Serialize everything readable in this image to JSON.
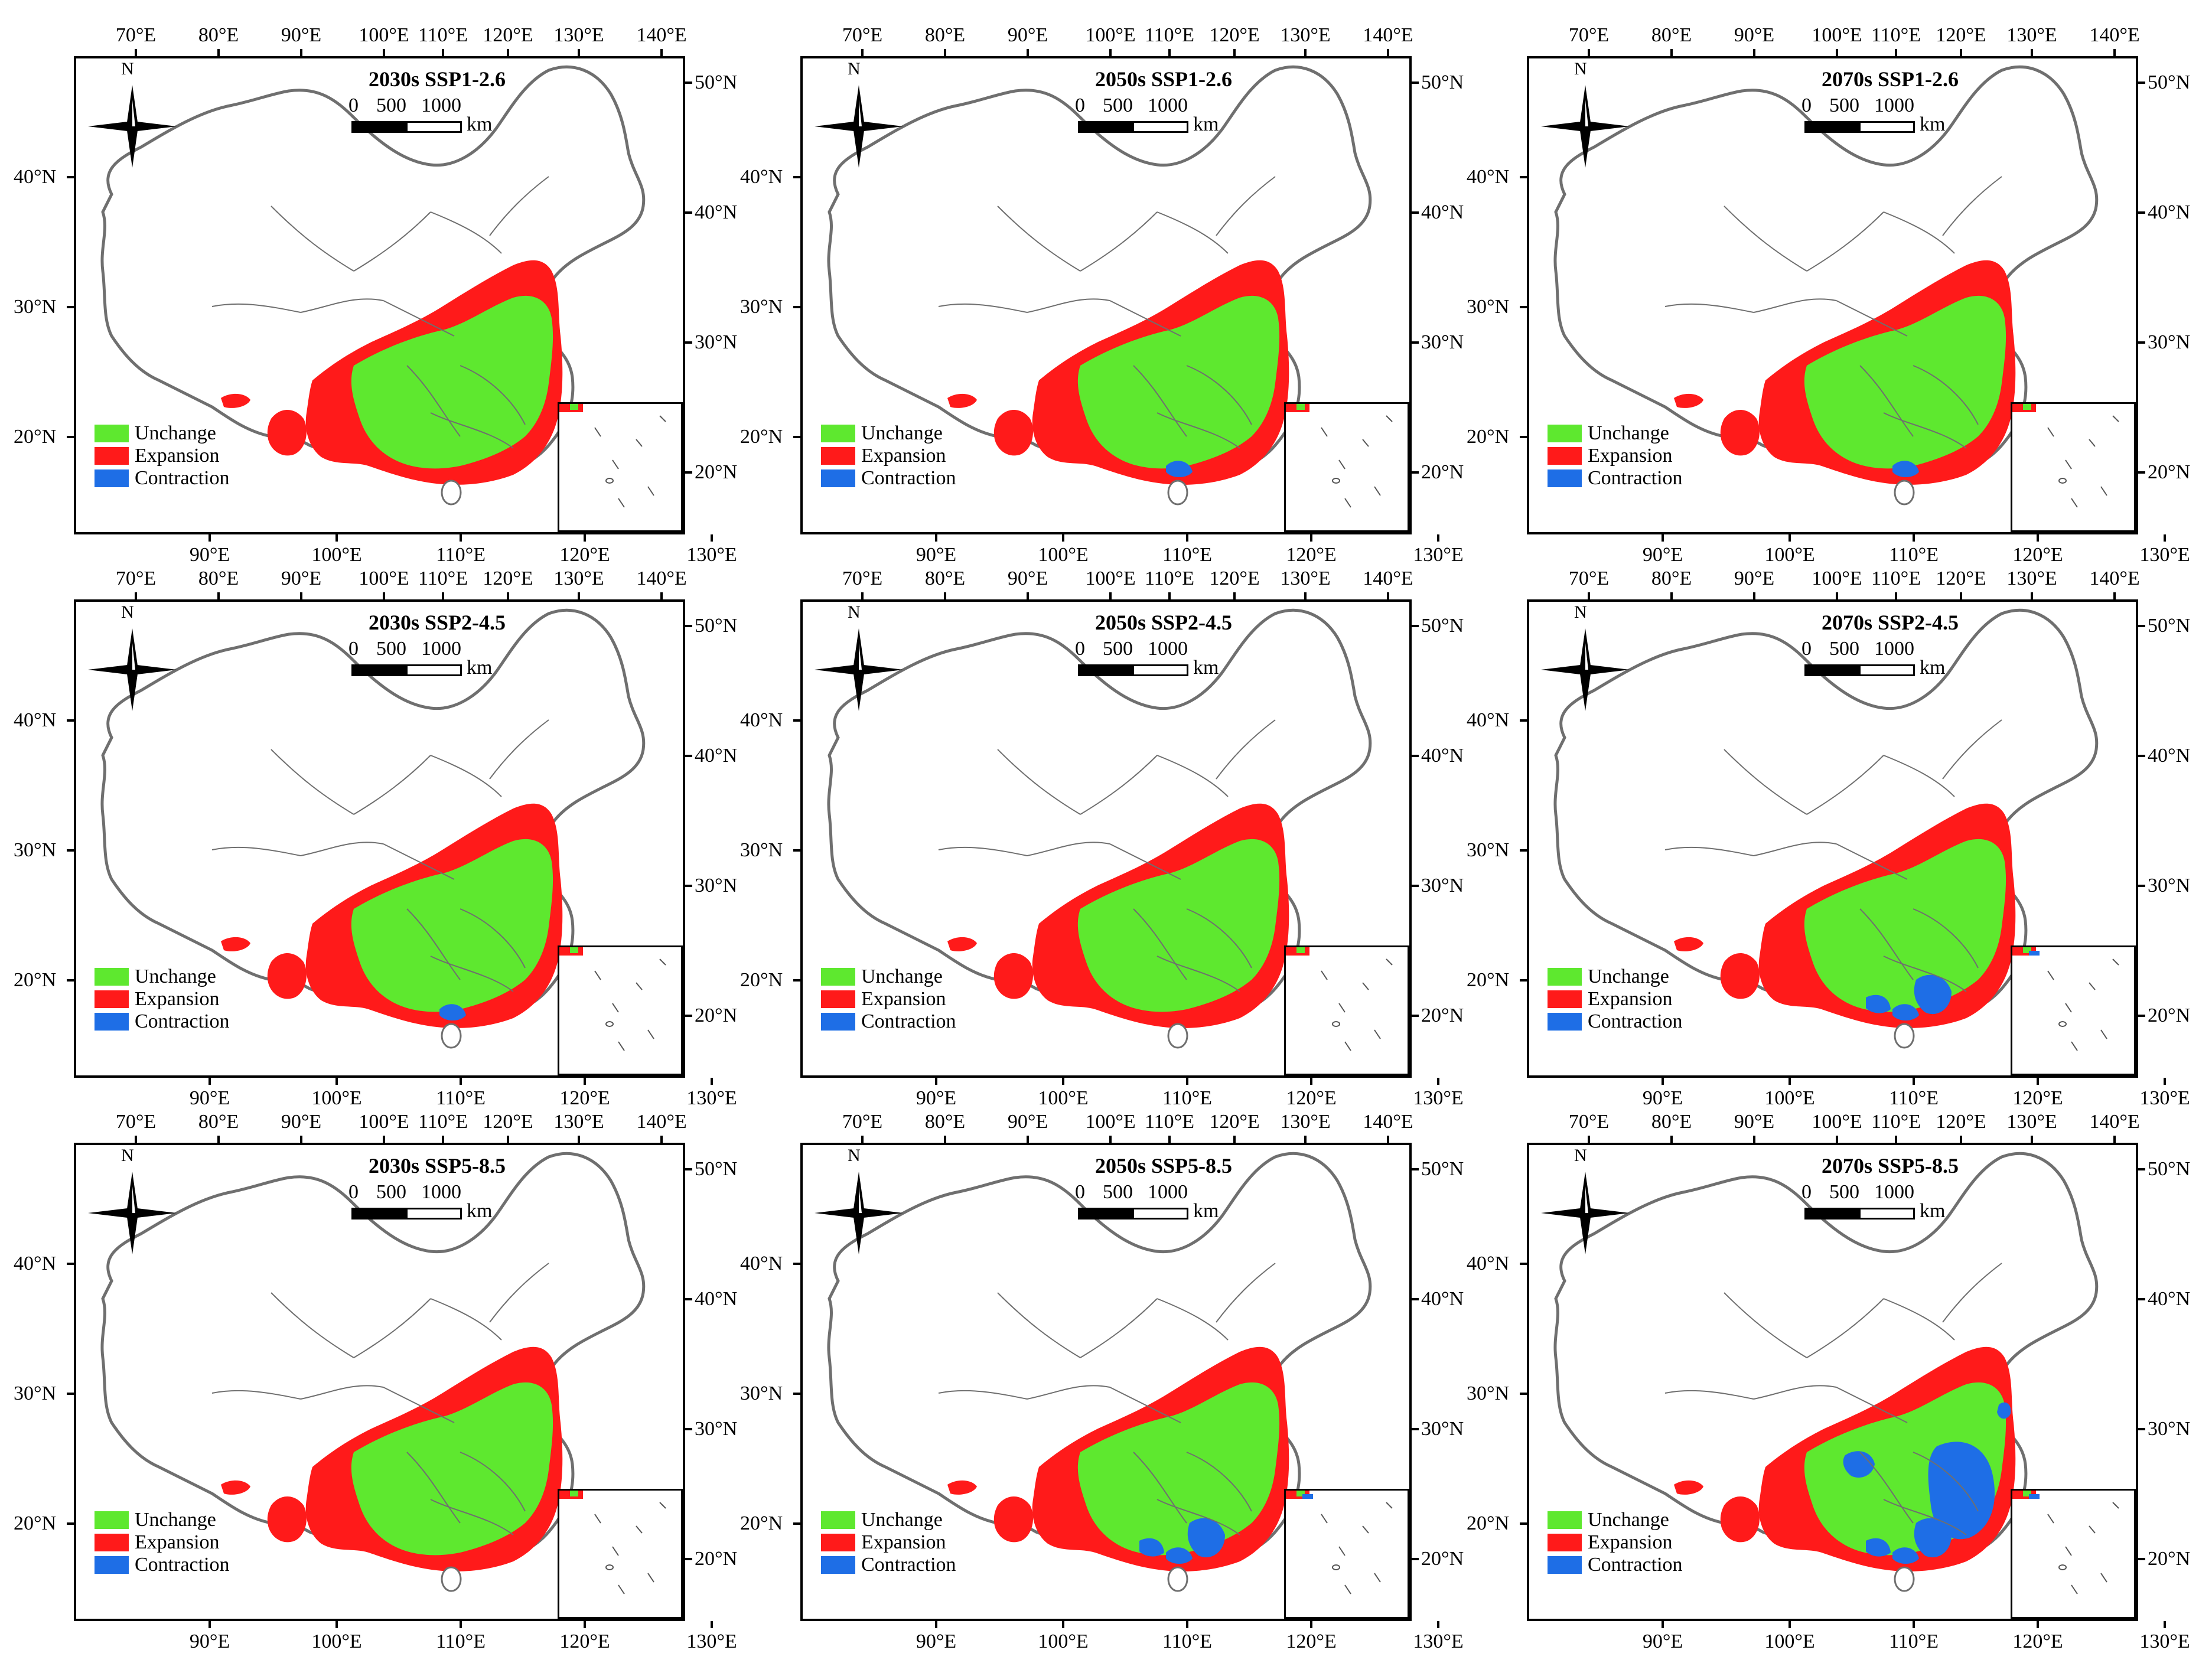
{
  "figure": {
    "colors": {
      "unchanged": "#5ee82f",
      "expansion": "#ff1a1a",
      "contraction": "#1e6ee6",
      "boundary": "#6f6f6f"
    },
    "top_axis_labels": [
      "70°E",
      "80°E",
      "90°E",
      "100°E",
      "110°E",
      "120°E",
      "130°E",
      "140°E"
    ],
    "bottom_axis_labels": [
      "90°E",
      "100°E",
      "110°E",
      "120°E",
      "130°E"
    ],
    "left_axis_labels": [
      "40°N",
      "30°N",
      "20°N"
    ],
    "right_axis_labels": [
      "50°N",
      "40°N",
      "30°N",
      "20°N"
    ],
    "north_label": "N",
    "scale": {
      "numbers": [
        "0",
        "500",
        "1000"
      ],
      "unit": "km"
    },
    "legend": [
      {
        "key": "unchanged",
        "label": "Unchange",
        "color": "#5ee82f"
      },
      {
        "key": "expansion",
        "label": "Expansion",
        "color": "#ff1a1a"
      },
      {
        "key": "contraction",
        "label": "Contraction",
        "color": "#1e6ee6"
      }
    ],
    "panels": [
      {
        "id": "p1",
        "title": "2030s SSP1-2.6",
        "period": "2030s",
        "scenario": "SSP1-2.6",
        "contraction_level": 0
      },
      {
        "id": "p2",
        "title": "2050s SSP1-2.6",
        "period": "2050s",
        "scenario": "SSP1-2.6",
        "contraction_level": 1
      },
      {
        "id": "p3",
        "title": "2070s SSP1-2.6",
        "period": "2070s",
        "scenario": "SSP1-2.6",
        "contraction_level": 1
      },
      {
        "id": "p4",
        "title": "2030s SSP2-4.5",
        "period": "2030s",
        "scenario": "SSP2-4.5",
        "contraction_level": 1
      },
      {
        "id": "p5",
        "title": "2050s SSP2-4.5",
        "period": "2050s",
        "scenario": "SSP2-4.5",
        "contraction_level": 0
      },
      {
        "id": "p6",
        "title": "2070s SSP2-4.5",
        "period": "2070s",
        "scenario": "SSP2-4.5",
        "contraction_level": 2
      },
      {
        "id": "p7",
        "title": "2030s SSP5-8.5",
        "period": "2030s",
        "scenario": "SSP5-8.5",
        "contraction_level": 0
      },
      {
        "id": "p8",
        "title": "2050s SSP5-8.5",
        "period": "2050s",
        "scenario": "SSP5-8.5",
        "contraction_level": 2
      },
      {
        "id": "p9",
        "title": "2070s SSP5-8.5",
        "period": "2070s",
        "scenario": "SSP5-8.5",
        "contraction_level": 3
      }
    ]
  }
}
